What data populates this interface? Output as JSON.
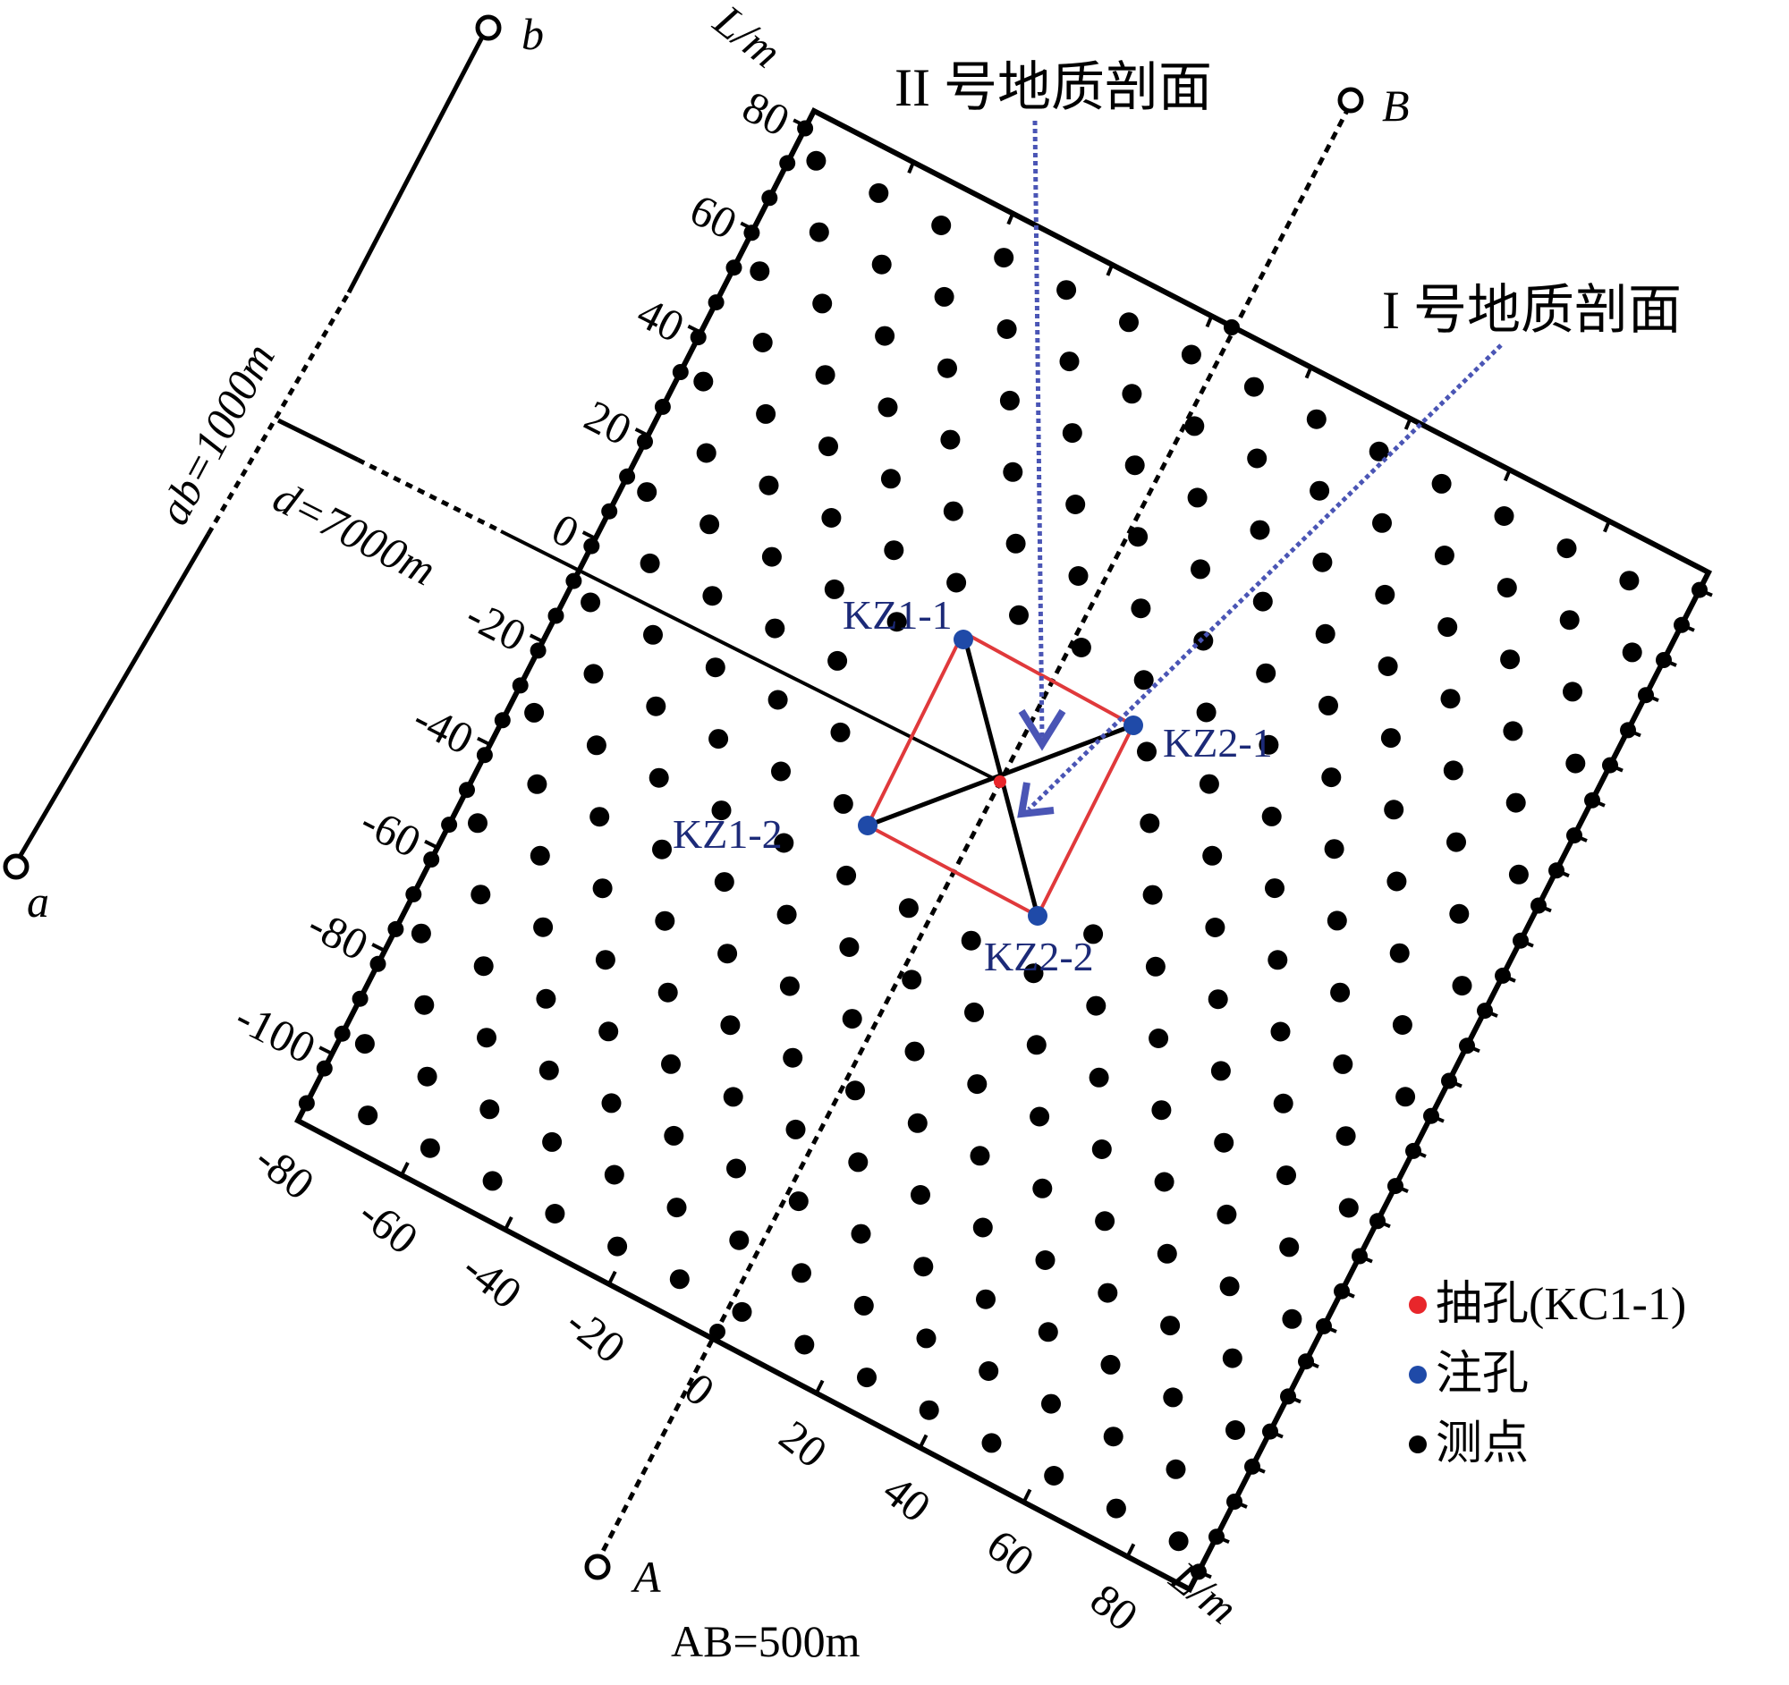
{
  "section_labels": {
    "section_ii": "II 号地质剖面",
    "section_i": "I 号地质剖面"
  },
  "axis": {
    "unit_left": "L/m",
    "unit_bottom": "L/m",
    "left_ticks": [
      "80",
      "60",
      "40",
      "20",
      "0",
      "-20",
      "-40",
      "-60",
      "-80",
      "-100"
    ],
    "bottom_ticks": [
      "-80",
      "-60",
      "-40",
      "-20",
      "0",
      "20",
      "40",
      "60",
      "80"
    ]
  },
  "lines": {
    "ab_start": "a",
    "ab_end": "b",
    "ab_length": "ab=1000m",
    "AB_start": "A",
    "AB_end": "B",
    "AB_length": "AB=500m",
    "d_length": "d=7000m"
  },
  "holes": {
    "kz1_1": "KZ1-1",
    "kz1_2": "KZ1-2",
    "kz2_1": "KZ2-1",
    "kz2_2": "KZ2-2"
  },
  "legend": [
    {
      "label": "抽孔(KC1-1)",
      "color": "#e8262b"
    },
    {
      "label": "注孔",
      "color": "#1f4aa8"
    },
    {
      "label": "测点",
      "color": "#000000"
    }
  ],
  "colors": {
    "outline": "#000000",
    "square": "#e0393b",
    "section_arrow": "#4a55b5",
    "hole_label": "#1c2a78"
  }
}
